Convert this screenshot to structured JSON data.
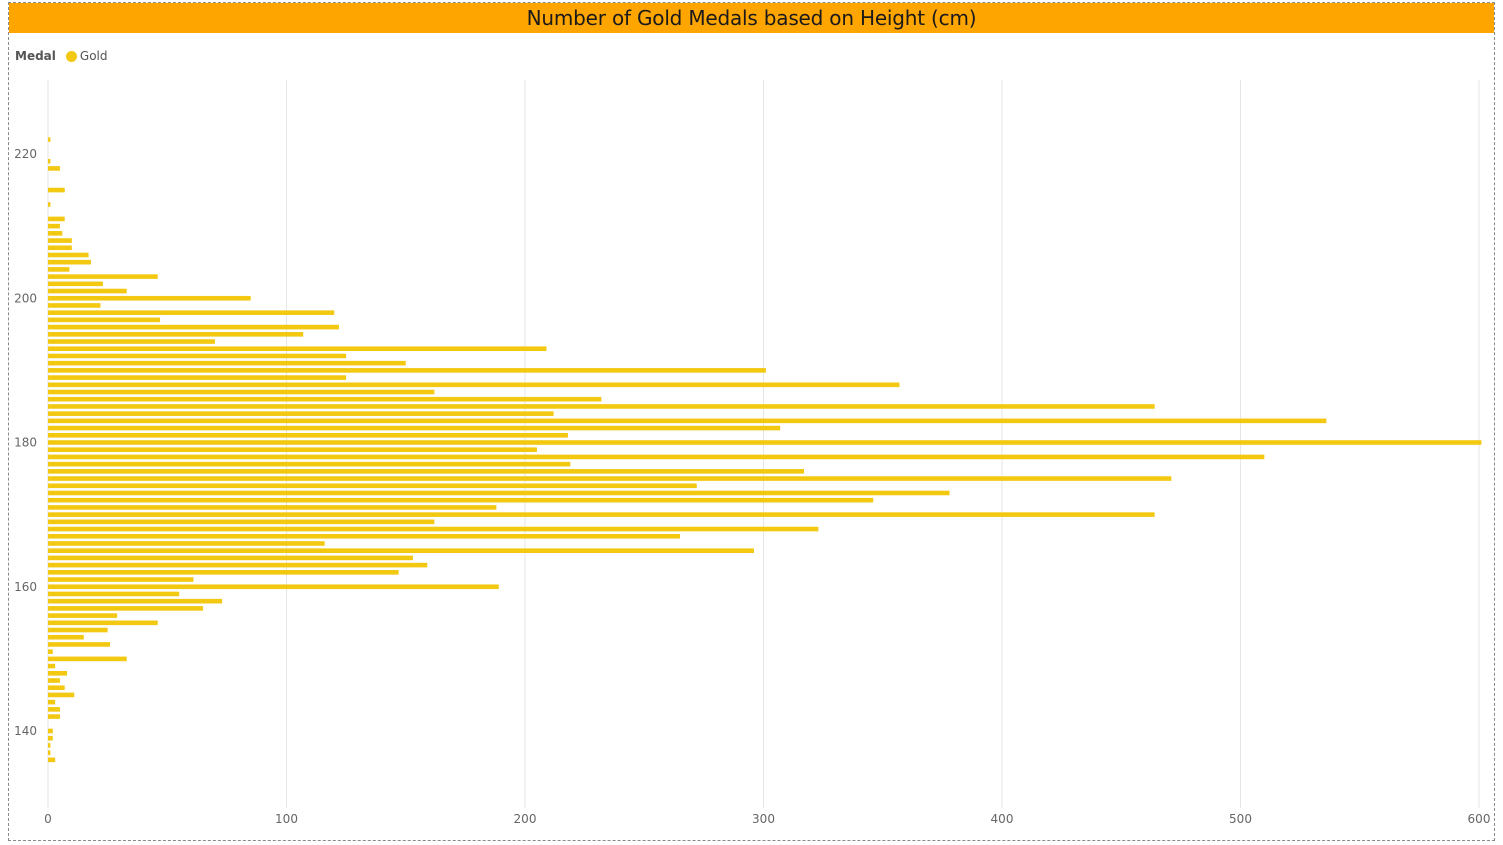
{
  "title": "Number of Gold Medals based on Height (cm)",
  "legend": {
    "title": "Medal",
    "items": [
      {
        "label": "Gold",
        "color": "#F2C811"
      }
    ]
  },
  "colors": {
    "header": "#FFA500",
    "bar": "#F2C811",
    "grid": "#e6e6e6"
  },
  "chart_data": {
    "type": "bar",
    "orientation": "horizontal",
    "title": "Number of Gold Medals based on Height (cm)",
    "xlabel": "",
    "ylabel": "",
    "xlim": [
      0,
      600
    ],
    "ylim": [
      130,
      228
    ],
    "x_ticks": [
      0,
      100,
      200,
      300,
      400,
      500,
      600
    ],
    "y_ticks": [
      140,
      160,
      180,
      200,
      220
    ],
    "grid": true,
    "legend_position": "top-left",
    "series": [
      {
        "name": "Gold",
        "color": "#F2C811",
        "heights": [
          136,
          137,
          138,
          139,
          140,
          142,
          143,
          144,
          145,
          146,
          147,
          148,
          149,
          150,
          151,
          152,
          153,
          154,
          155,
          156,
          157,
          158,
          159,
          160,
          161,
          162,
          163,
          164,
          165,
          166,
          167,
          168,
          169,
          170,
          171,
          172,
          173,
          174,
          175,
          176,
          177,
          178,
          179,
          180,
          181,
          182,
          183,
          184,
          185,
          186,
          187,
          188,
          189,
          190,
          191,
          192,
          193,
          194,
          195,
          196,
          197,
          198,
          199,
          200,
          201,
          202,
          203,
          204,
          205,
          206,
          207,
          208,
          209,
          210,
          211,
          213,
          215,
          218,
          219,
          222
        ],
        "values": [
          3,
          1,
          1,
          2,
          2,
          5,
          5,
          3,
          11,
          7,
          5,
          8,
          3,
          33,
          2,
          26,
          15,
          25,
          46,
          29,
          65,
          73,
          55,
          189,
          61,
          147,
          159,
          153,
          296,
          116,
          265,
          323,
          162,
          464,
          188,
          346,
          378,
          272,
          471,
          317,
          219,
          510,
          205,
          601,
          218,
          307,
          536,
          212,
          464,
          232,
          162,
          357,
          125,
          301,
          150,
          125,
          209,
          70,
          107,
          122,
          47,
          120,
          22,
          85,
          33,
          23,
          46,
          9,
          18,
          17,
          10,
          10,
          6,
          5,
          7,
          1,
          7,
          5,
          1,
          1
        ]
      }
    ]
  }
}
